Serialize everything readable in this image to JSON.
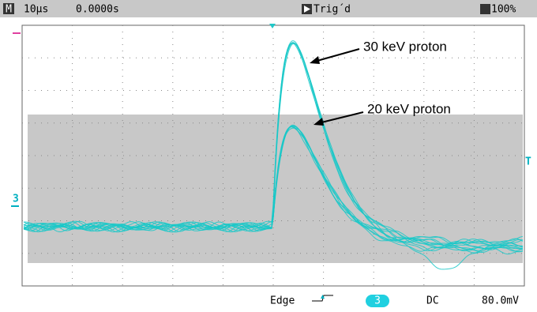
{
  "header": {
    "mode": "M",
    "timebase": "10µs",
    "position": "0.0000s",
    "status": "Trig´d",
    "zoom": "100%"
  },
  "markers": {
    "channel": "3",
    "trigger_level": "T"
  },
  "annotations": [
    "30 keV proton",
    "20 keV proton"
  ],
  "footer": {
    "trigger_type": "Edge",
    "channel": "3",
    "coupling": "DC",
    "scale": "80.0mV"
  }
}
